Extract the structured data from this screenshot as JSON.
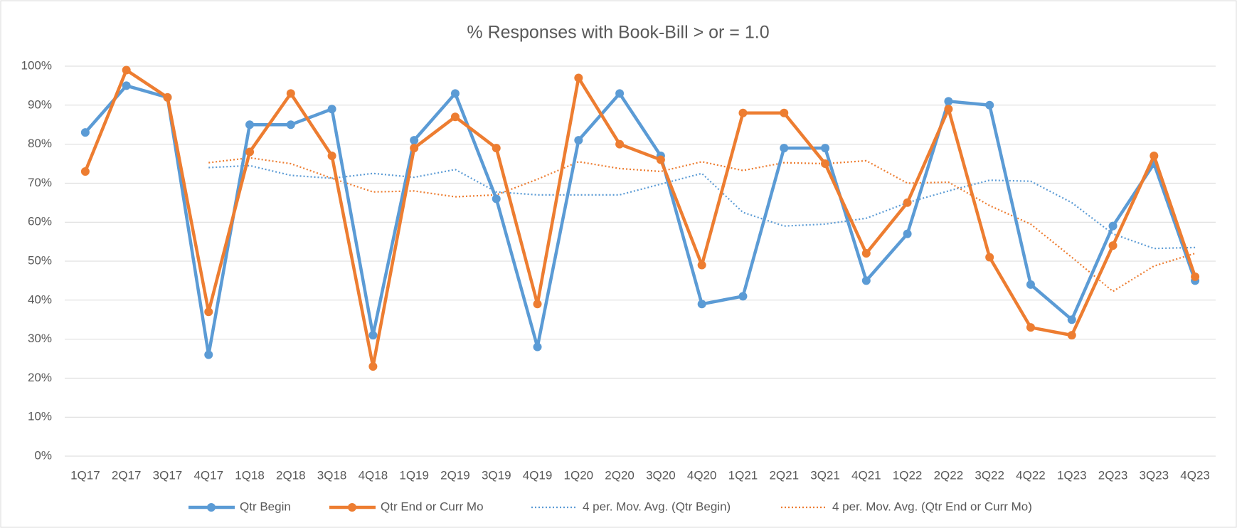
{
  "chart_data": {
    "type": "line",
    "title": "% Responses  with Book-Bill > or = 1.0",
    "categories": [
      "1Q17",
      "2Q17",
      "3Q17",
      "4Q17",
      "1Q18",
      "2Q18",
      "3Q18",
      "4Q18",
      "1Q19",
      "2Q19",
      "3Q19",
      "4Q19",
      "1Q20",
      "2Q20",
      "3Q20",
      "4Q20",
      "1Q21",
      "2Q21",
      "3Q21",
      "4Q21",
      "1Q22",
      "2Q22",
      "3Q22",
      "4Q22",
      "1Q23",
      "2Q23",
      "3Q23",
      "4Q23"
    ],
    "series": [
      {
        "name": "Qtr Begin",
        "color": "#5b9bd5",
        "style": "solid",
        "markers": true,
        "values": [
          83,
          95,
          92,
          26,
          85,
          85,
          89,
          31,
          81,
          93,
          66,
          28,
          81,
          93,
          77,
          39,
          41,
          79,
          79,
          45,
          57,
          91,
          90,
          44,
          35,
          59,
          75,
          45
        ]
      },
      {
        "name": "Qtr End or Curr Mo",
        "color": "#ed7d31",
        "style": "solid",
        "markers": true,
        "values": [
          73,
          99,
          92,
          37,
          78,
          93,
          77,
          23,
          79,
          87,
          79,
          39,
          97,
          80,
          76,
          49,
          88,
          88,
          75,
          52,
          65,
          89,
          51,
          33,
          31,
          54,
          77,
          46
        ]
      },
      {
        "name": "4 per. Mov. Avg. (Qtr Begin)",
        "color": "#5b9bd5",
        "style": "dotted",
        "markers": false,
        "values": [
          null,
          null,
          null,
          74,
          74.5,
          72,
          71.25,
          72.5,
          71.5,
          73.5,
          67.75,
          67,
          67,
          67,
          69.75,
          72.5,
          62.5,
          59,
          59.5,
          61,
          65,
          68,
          70.75,
          70.5,
          65,
          57,
          53.25,
          53.5
        ]
      },
      {
        "name": "4 per. Mov. Avg. (Qtr End or Curr Mo)",
        "color": "#ed7d31",
        "style": "dotted",
        "markers": false,
        "values": [
          null,
          null,
          null,
          75.25,
          76.5,
          75,
          71.25,
          67.75,
          68,
          66.5,
          67,
          71,
          75.5,
          73.75,
          73,
          75.5,
          73.25,
          75.25,
          75,
          75.75,
          70,
          70.25,
          64.25,
          59.5,
          51,
          42.25,
          48.75,
          52
        ]
      }
    ],
    "ylim": [
      0,
      100
    ],
    "yticks": [
      {
        "value": 0,
        "label": "0%"
      },
      {
        "value": 10,
        "label": "10%"
      },
      {
        "value": 20,
        "label": "20%"
      },
      {
        "value": 30,
        "label": "30%"
      },
      {
        "value": 40,
        "label": "40%"
      },
      {
        "value": 50,
        "label": "50%"
      },
      {
        "value": 60,
        "label": "60%"
      },
      {
        "value": 70,
        "label": "70%"
      },
      {
        "value": 80,
        "label": "80%"
      },
      {
        "value": 90,
        "label": "90%"
      },
      {
        "value": 100,
        "label": "100%"
      }
    ],
    "grid": true,
    "legend": "bottom"
  }
}
